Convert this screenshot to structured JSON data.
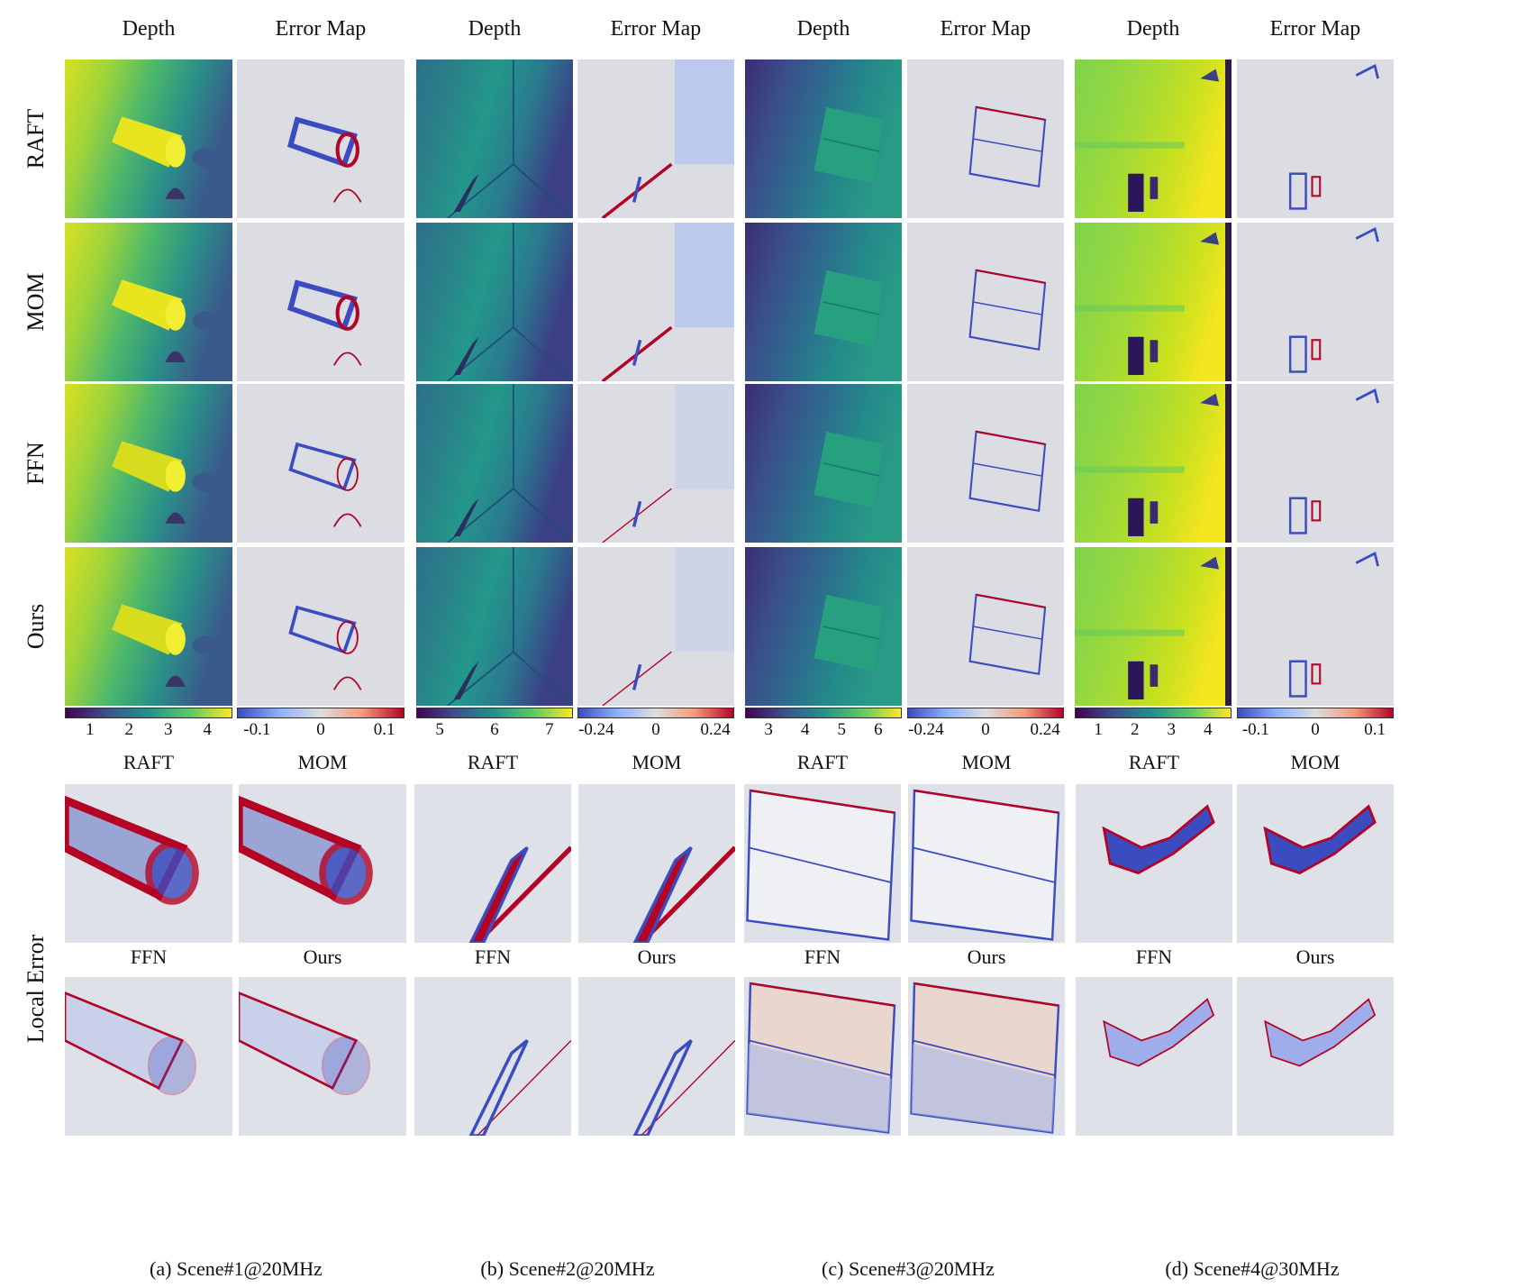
{
  "columns": [
    {
      "label": "Depth"
    },
    {
      "label": "Error Map"
    },
    {
      "label": "Depth"
    },
    {
      "label": "Error Map"
    },
    {
      "label": "Depth"
    },
    {
      "label": "Error Map"
    },
    {
      "label": "Depth"
    },
    {
      "label": "Error Map"
    }
  ],
  "rows": [
    {
      "label": "RAFT"
    },
    {
      "label": "MOM"
    },
    {
      "label": "FFN"
    },
    {
      "label": "Ours"
    }
  ],
  "colorbars": [
    {
      "kind": "depth",
      "ticks": [
        "1",
        "2",
        "3",
        "4"
      ]
    },
    {
      "kind": "error",
      "ticks": [
        "-0.1",
        "0",
        "0.1"
      ]
    },
    {
      "kind": "depth",
      "ticks": [
        "5",
        "6",
        "7"
      ]
    },
    {
      "kind": "error",
      "ticks": [
        "-0.24",
        "0",
        "0.24"
      ]
    },
    {
      "kind": "depth",
      "ticks": [
        "3",
        "4",
        "5",
        "6"
      ]
    },
    {
      "kind": "error",
      "ticks": [
        "-0.24",
        "0",
        "0.24"
      ]
    },
    {
      "kind": "depth",
      "ticks": [
        "1",
        "2",
        "3",
        "4"
      ]
    },
    {
      "kind": "error",
      "ticks": [
        "-0.1",
        "0",
        "0.1"
      ]
    }
  ],
  "local_error": {
    "row_label": "Local  Error",
    "top_labels": [
      "RAFT",
      "MOM",
      "RAFT",
      "MOM",
      "RAFT",
      "MOM",
      "RAFT",
      "MOM"
    ],
    "bottom_labels": [
      "FFN",
      "Ours",
      "FFN",
      "Ours",
      "FFN",
      "Ours",
      "FFN",
      "Ours"
    ]
  },
  "captions": [
    "(a) Scene#1@20MHz",
    "(b) Scene#2@20MHz",
    "(c) Scene#3@20MHz",
    "(d) Scene#4@30MHz"
  ],
  "colors": {
    "viridis": [
      "#440154",
      "#3b528b",
      "#21918c",
      "#5ec962",
      "#fde725"
    ],
    "coolwarm": [
      "#3b4cc0",
      "#8db0fe",
      "#dddddd",
      "#f49a7b",
      "#b40426"
    ]
  }
}
